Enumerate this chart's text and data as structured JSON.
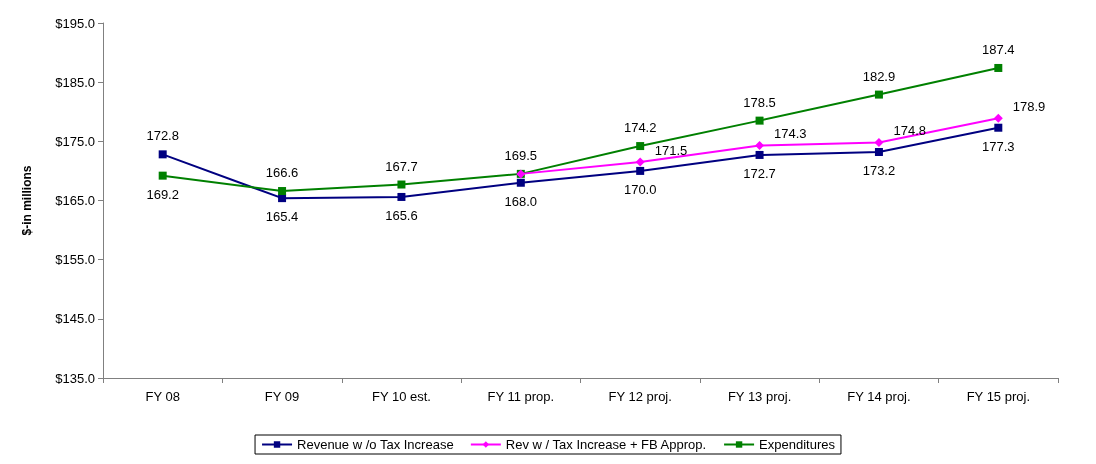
{
  "chart_data": {
    "type": "line",
    "ylabel": "$-in millions",
    "categories": [
      "FY 08",
      "FY 09",
      "FY 10 est.",
      "FY 11 prop.",
      "FY 12 proj.",
      "FY 13 proj.",
      "FY 14 proj.",
      "FY 15 proj."
    ],
    "series": [
      {
        "name": "Revenue w /o Tax Increase",
        "color": "#000080",
        "marker": "square",
        "values": [
          172.8,
          165.4,
          165.6,
          168.0,
          170.0,
          172.7,
          173.2,
          177.3
        ],
        "value_labels": [
          "172.8",
          "165.4",
          "165.6",
          "168.0",
          "170.0",
          "172.7",
          "173.2",
          "177.3"
        ]
      },
      {
        "name": "Rev w / Tax Increase + FB Approp.",
        "color": "#ff00ff",
        "marker": "diamond",
        "values": [
          null,
          null,
          null,
          169.5,
          171.5,
          174.3,
          174.8,
          178.9
        ],
        "value_labels": [
          null,
          null,
          null,
          null,
          "171.5",
          "174.3",
          "174.8",
          "178.9"
        ]
      },
      {
        "name": "Expenditures",
        "color": "#008000",
        "marker": "square",
        "values": [
          169.2,
          166.6,
          167.7,
          169.5,
          174.2,
          178.5,
          182.9,
          187.4
        ],
        "value_labels": [
          "169.2",
          "166.6",
          "167.7",
          "169.5",
          "174.2",
          "178.5",
          "182.9",
          "187.4"
        ]
      }
    ],
    "ylim": [
      135,
      195
    ],
    "yticks": [
      {
        "value": 135,
        "label": "$135.0"
      },
      {
        "value": 145,
        "label": "$145.0"
      },
      {
        "value": 155,
        "label": "$155.0"
      },
      {
        "value": 165,
        "label": "$165.0"
      },
      {
        "value": 175,
        "label": "$175.0"
      },
      {
        "value": 185,
        "label": "$185.0"
      },
      {
        "value": 195,
        "label": "$195.0"
      }
    ],
    "grid": false,
    "legend": "bottom",
    "line_style": "solid"
  }
}
